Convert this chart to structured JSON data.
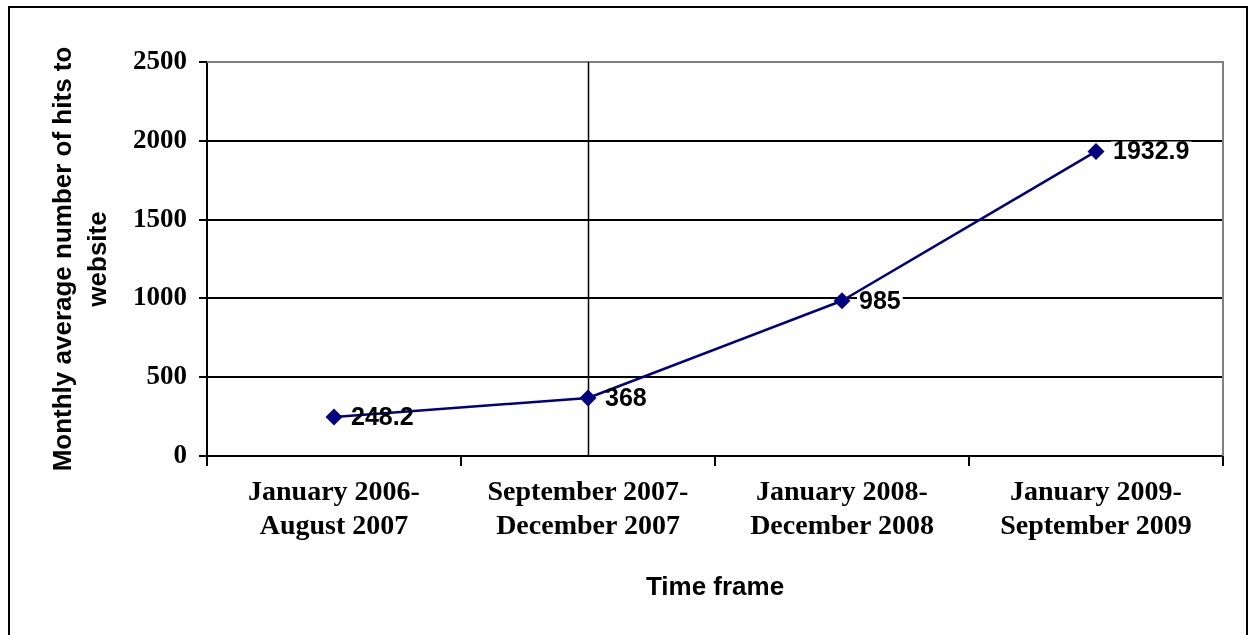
{
  "chart_data": {
    "type": "line",
    "xlabel": "Time frame",
    "ylabel": "Monthly average number of hits to website",
    "categories": [
      "January 2006-August 2007",
      "September 2007-December 2007",
      "January 2008-December 2008",
      "January 2009-September 2009"
    ],
    "series": [
      {
        "color": "#000080",
        "values": [
          248.2,
          368,
          985,
          1932.9
        ]
      }
    ],
    "ylim": [
      0,
      2500
    ],
    "yticks": [
      0,
      500,
      1000,
      1500,
      2000,
      2500
    ],
    "grid": "y",
    "marker": "diamond",
    "data_labels": true,
    "ref_lines": [
      {
        "axis": "x",
        "value": "September 2007-December 2007",
        "color": "#000000"
      }
    ]
  }
}
